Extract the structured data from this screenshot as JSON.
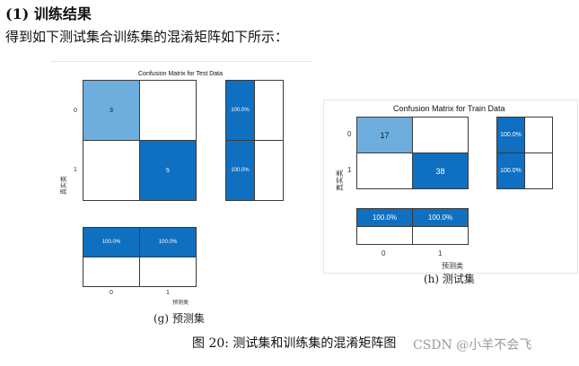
{
  "heading": "(1) 训练结果",
  "intro": "得到如下测试集合训练集的混淆矩阵如下所示：",
  "chart_data": [
    {
      "type": "heatmap",
      "title": "Confusion Matrix for Test Data",
      "xlabel": "预测类",
      "ylabel": "真实类",
      "row_labels": [
        "0",
        "1"
      ],
      "col_labels": [
        "0",
        "1"
      ],
      "matrix": [
        [
          3,
          null
        ],
        [
          null,
          5
        ]
      ],
      "cell_text": [
        [
          "3",
          ""
        ],
        [
          "",
          "5"
        ]
      ],
      "row_summary": [
        "100.0%",
        "100.0%"
      ],
      "col_summary": [
        "100.0%",
        "100.0%"
      ],
      "caption": "(g) 预测集"
    },
    {
      "type": "heatmap",
      "title": "Confusion Matrix for Train Data",
      "xlabel": "预测类",
      "ylabel": "真实类",
      "row_labels": [
        "0",
        "1"
      ],
      "col_labels": [
        "0",
        "1"
      ],
      "matrix": [
        [
          17,
          null
        ],
        [
          null,
          38
        ]
      ],
      "cell_text": [
        [
          "17",
          ""
        ],
        [
          "",
          "38"
        ]
      ],
      "row_summary": [
        "100.0%",
        "100.0%"
      ],
      "col_summary": [
        "100.0%",
        "100.0%"
      ],
      "caption": "(h) 测试集"
    }
  ],
  "figure_caption": "图 20: 测试集和训练集的混淆矩阵图",
  "watermark": "CSDN @小羊不会飞",
  "colors": {
    "diag_light": "#6eaedc",
    "diag_dark": "#0f6fc0",
    "cell_border": "#3a3a3a"
  }
}
